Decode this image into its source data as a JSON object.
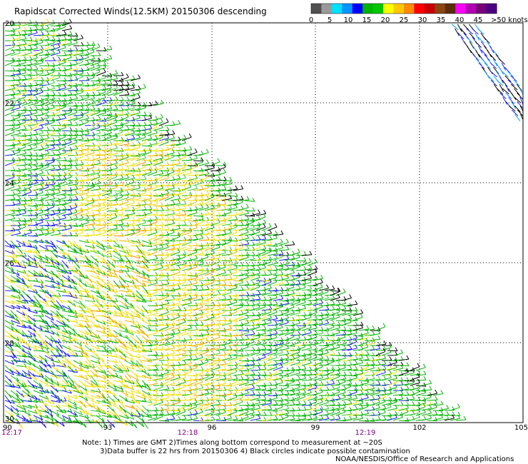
{
  "title": "Rapidscat Corrected Winds(12.5KM) 20150306 descending",
  "colorbar": {
    "colors": [
      "#505050",
      "#9a9a9a",
      "#00e0ff",
      "#0096ff",
      "#0000ff",
      "#00b400",
      "#00c800",
      "#ffff00",
      "#ffc800",
      "#ff8c00",
      "#ff0000",
      "#c80000",
      "#8b4513",
      "#5a2e0a",
      "#ff00ff",
      "#b400b4",
      "#780078",
      "#4b0082"
    ],
    "labels": [
      "0",
      "5",
      "10",
      "15",
      "20",
      "25",
      "30",
      "35",
      "40",
      "45",
      ">50 knots"
    ]
  },
  "lat_labels": [
    "20",
    "22",
    "24",
    "26",
    "28",
    "30"
  ],
  "lon_labels": [
    "90",
    "93",
    "96",
    "99",
    "102",
    "105"
  ],
  "time_labels": [
    "12:17",
    "12:18",
    "12:19"
  ],
  "notes": [
    "Note: 1) Times are GMT 2)Times along bottom correspond to measurement at ~20S",
    "3)Data buffer is 22 hrs from 20150306 4) Black circles indicate possible contamination",
    "NOAA/NESDIS/Office of Research and Applications"
  ],
  "wind_colors": {
    "green": "#00b400",
    "light_green": "#33cc33",
    "yellow": "#f0e000",
    "gold": "#e6b400",
    "blue": "#1a1aff",
    "cyan_blue": "#0096ff",
    "orange": "#ff8c00",
    "black": "#000000"
  }
}
